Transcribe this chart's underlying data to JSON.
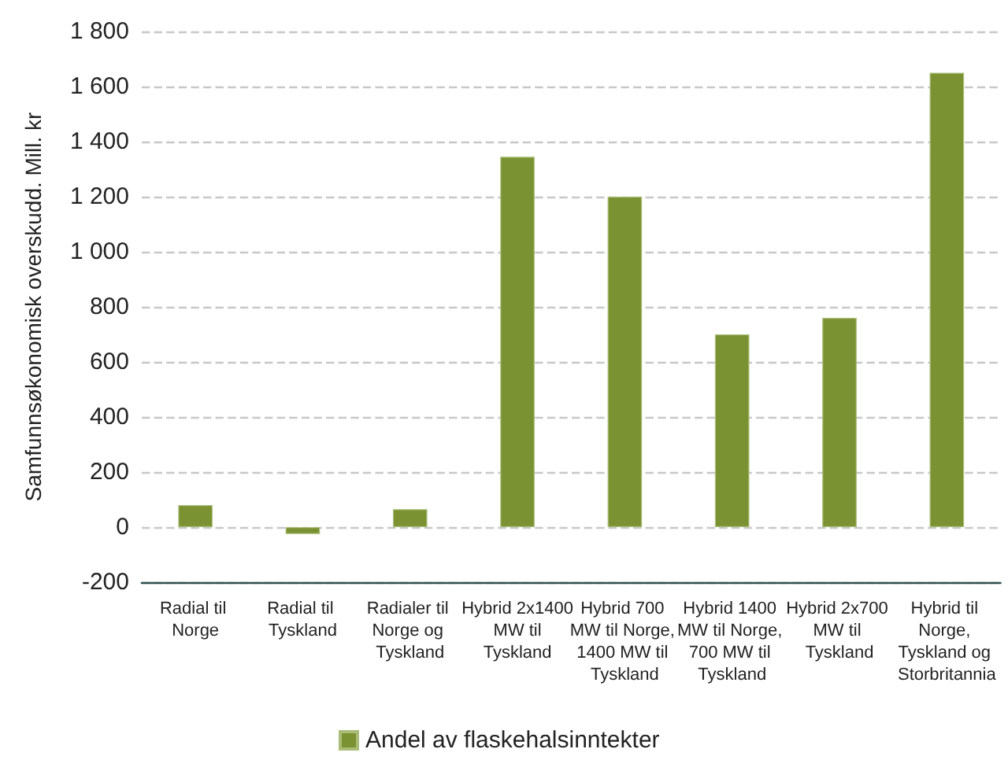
{
  "chart_data": {
    "type": "bar",
    "ylabel": "Samfunnsøkonomisk overskudd. Mill. kr",
    "categories": [
      "Radial til Norge",
      "Radial til Tyskland",
      "Radialer til Norge og Tyskland",
      "Hybrid 2x1400 MW til Tyskland",
      "Hybrid 700 MW til Norge, 1400 MW til Tyskland",
      "Hybrid 1400 MW til Norge, 700 MW til Tyskland",
      "Hybrid 2x700 MW til Tyskland",
      "Hybrid til Norge, Tyskland og Storbritannia"
    ],
    "series": [
      {
        "name": "Andel av flaskehalsinntekter",
        "color": "#7a9232",
        "values": [
          80,
          -25,
          65,
          1345,
          1200,
          700,
          760,
          1650
        ]
      }
    ],
    "ylim": [
      -200,
      1800
    ],
    "yticks": [
      {
        "value": -200,
        "label": "-200"
      },
      {
        "value": 0,
        "label": "0"
      },
      {
        "value": 200,
        "label": "200"
      },
      {
        "value": 400,
        "label": "400"
      },
      {
        "value": 600,
        "label": "600"
      },
      {
        "value": 800,
        "label": "800"
      },
      {
        "value": 1000,
        "label": "1 000"
      },
      {
        "value": 1200,
        "label": "1 200"
      },
      {
        "value": 1400,
        "label": "1 400"
      },
      {
        "value": 1600,
        "label": "1 600"
      },
      {
        "value": 1800,
        "label": "1 800"
      }
    ],
    "grid": "y",
    "legend": "bottom"
  }
}
